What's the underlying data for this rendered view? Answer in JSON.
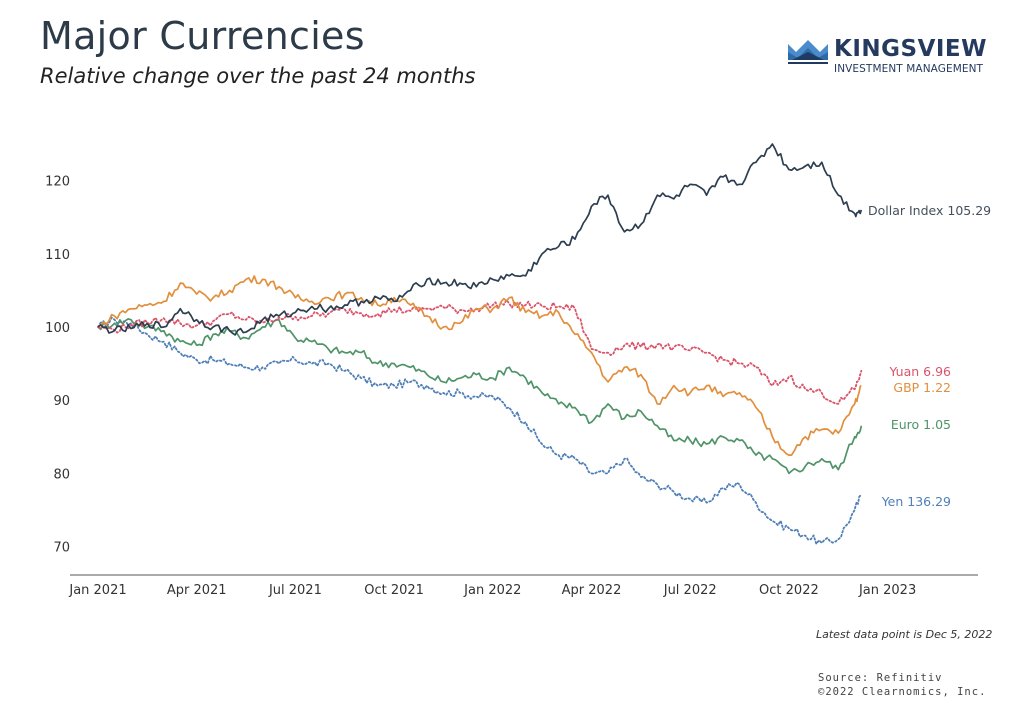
{
  "header": {
    "title": "Major Currencies",
    "subtitle": "Relative change over the past 24 months"
  },
  "logo": {
    "name": "KINGSVIEW",
    "tagline": "INVESTMENT MANAGEMENT",
    "icon": "crown-icon",
    "colors": {
      "light": "#3f84c4",
      "dark": "#1f3b63"
    }
  },
  "footer": {
    "note": "Latest data point is Dec 5, 2022",
    "source": "Source: Refinitiv",
    "copyright": "©2022 Clearnomics, Inc."
  },
  "chart_data": {
    "type": "line",
    "title": "Major Currencies",
    "subtitle": "Relative change over the past 24 months",
    "xlabel": "",
    "ylabel": "",
    "x_range": [
      "2021-01-01",
      "2023-04-01"
    ],
    "ylim": [
      67,
      127
    ],
    "y_ticks": [
      70,
      80,
      90,
      100,
      110,
      120
    ],
    "x_ticks": [
      "Jan 2021",
      "Apr 2021",
      "Jul 2021",
      "Oct 2021",
      "Jan 2022",
      "Apr 2022",
      "Jul 2022",
      "Oct 2022",
      "Jan 2023"
    ],
    "grid": false,
    "legend": "direct labels at right end of lines",
    "x_months": [
      0,
      0.5,
      1,
      1.5,
      2,
      2.5,
      3,
      3.5,
      4,
      4.5,
      5,
      5.5,
      6,
      6.5,
      7,
      7.5,
      8,
      8.5,
      9,
      9.5,
      10,
      10.5,
      11,
      11.5,
      12,
      12.5,
      13,
      13.5,
      14,
      14.5,
      15,
      15.5,
      16,
      16.5,
      17,
      17.5,
      18,
      18.5,
      19,
      19.5,
      20,
      20.5,
      21,
      21.5,
      22,
      22.5,
      23,
      23.2
    ],
    "series": [
      {
        "name": "Dollar Index",
        "label": "Dollar Index 105.29",
        "color": "#2c3e50",
        "style": "solid",
        "values": [
          100,
          99.5,
          99.8,
          100.5,
          100,
          102.5,
          101,
          100,
          99.5,
          99.3,
          101,
          101.5,
          102,
          102.8,
          102.5,
          103,
          103.5,
          104,
          103.5,
          105,
          106.5,
          106,
          106,
          105.5,
          106.5,
          107,
          107,
          110,
          111,
          112,
          116.5,
          118,
          113,
          114,
          118,
          117.5,
          119.5,
          118,
          120.5,
          119.5,
          122.5,
          125,
          121.5,
          122,
          122.5,
          118,
          115.5,
          116
        ]
      },
      {
        "name": "Yuan",
        "label": "Yuan 6.96",
        "color": "#d9546a",
        "style": "dotted",
        "values": [
          100,
          99.6,
          100.3,
          100.6,
          101.2,
          100.5,
          100.2,
          100.8,
          101.8,
          101,
          100.6,
          101.3,
          101.4,
          101.5,
          101.8,
          102.4,
          101.9,
          101.8,
          102.4,
          102.2,
          102.5,
          102.7,
          102.3,
          102.5,
          103,
          103.2,
          103,
          102.8,
          102.8,
          102.5,
          97,
          96.5,
          97.5,
          97.3,
          97.6,
          97.2,
          96.8,
          96.5,
          95.5,
          95,
          94.5,
          92,
          93.2,
          91.5,
          91,
          89.5,
          91.5,
          94
        ]
      },
      {
        "name": "GBP",
        "label": "GBP 1.22",
        "color": "#e28f3d",
        "style": "solid",
        "values": [
          100,
          101.5,
          102.5,
          103,
          103.5,
          106,
          104.5,
          104,
          105,
          106.5,
          106.5,
          105.5,
          104,
          103.5,
          104,
          104.5,
          104,
          103,
          104,
          103,
          101.5,
          100,
          100.5,
          102.5,
          102.5,
          104,
          102,
          101.5,
          102,
          99,
          96.5,
          92.5,
          94.5,
          93.5,
          89.5,
          92,
          91,
          92,
          90.5,
          91,
          89,
          85,
          82.5,
          85,
          86,
          85.5,
          89.5,
          92
        ]
      },
      {
        "name": "Euro",
        "label": "Euro 1.05",
        "color": "#4f9468",
        "style": "solid",
        "values": [
          100,
          100.5,
          101,
          100,
          99.5,
          98,
          97.5,
          99,
          99.5,
          98.5,
          100,
          101,
          98.5,
          98,
          97,
          96.5,
          96.5,
          95,
          95,
          94.5,
          93.5,
          92.5,
          93,
          93.5,
          93,
          94.5,
          93,
          91,
          89.5,
          89,
          87,
          89.5,
          87.5,
          88.5,
          86.5,
          84.5,
          84.5,
          84,
          85,
          84.5,
          82.5,
          82,
          80,
          81,
          82,
          80.5,
          85,
          86.5
        ]
      },
      {
        "name": "Yen",
        "label": "Yen 136.29",
        "color": "#4f7fb8",
        "style": "dotted",
        "values": [
          100,
          101,
          100.5,
          99,
          98,
          96.5,
          95.5,
          95.5,
          95,
          94.5,
          94.5,
          95,
          95.5,
          95,
          95,
          94,
          93,
          92,
          92,
          92.5,
          92,
          91,
          91,
          90.5,
          90.5,
          89,
          87,
          84,
          82.5,
          82,
          80,
          80,
          82,
          79.5,
          78.5,
          77.5,
          76.5,
          76,
          78,
          78.5,
          76,
          73.5,
          72.5,
          71.5,
          70.5,
          71,
          75,
          77
        ]
      }
    ]
  }
}
